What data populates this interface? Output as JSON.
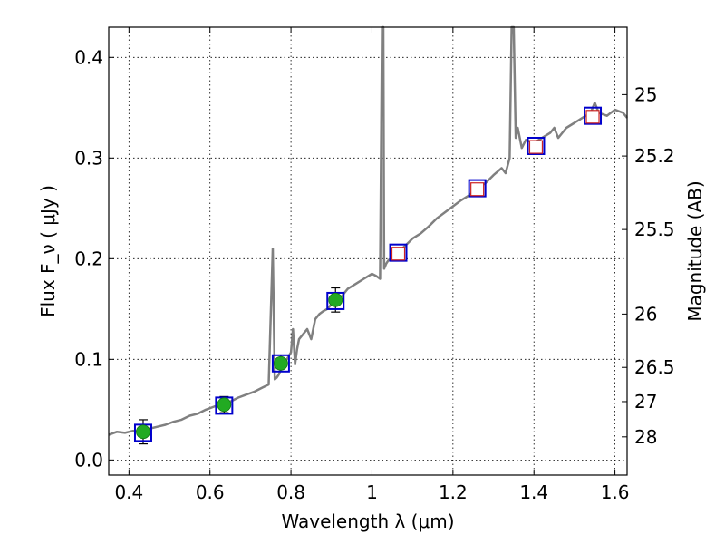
{
  "chart_data": {
    "type": "scatter",
    "xlabel": "Wavelength  λ (μm)",
    "ylabel": "Flux  F_ν  ( μJy )",
    "ylabel_right": "Magnitude (AB)",
    "xlim": [
      0.35,
      1.63
    ],
    "ylim": [
      -0.015,
      0.43
    ],
    "x_ticks": [
      0.4,
      0.6,
      0.8,
      1.0,
      1.2,
      1.4,
      1.6
    ],
    "x_tick_labels": [
      "0.4",
      "0.6",
      "0.8",
      "1",
      "1.2",
      "1.4",
      "1.6"
    ],
    "y_ticks": [
      0.0,
      0.1,
      0.2,
      0.3,
      0.4
    ],
    "y_tick_labels": [
      "0.0",
      "0.1",
      "0.2",
      "0.3",
      "0.4"
    ],
    "right_ticks": [
      {
        "label": "25",
        "flux": 0.363
      },
      {
        "label": "25.2",
        "flux": 0.302
      },
      {
        "label": "25.5",
        "flux": 0.229
      },
      {
        "label": "26",
        "flux": 0.145
      },
      {
        "label": "26.5",
        "flux": 0.092
      },
      {
        "label": "27",
        "flux": 0.058
      },
      {
        "label": "28",
        "flux": 0.023
      }
    ],
    "grid": true,
    "series": [
      {
        "role": "spectrum",
        "color": "#808080",
        "x": [
          0.35,
          0.37,
          0.39,
          0.41,
          0.43,
          0.45,
          0.47,
          0.49,
          0.51,
          0.53,
          0.55,
          0.57,
          0.59,
          0.61,
          0.63,
          0.65,
          0.67,
          0.69,
          0.71,
          0.73,
          0.745,
          0.755,
          0.76,
          0.765,
          0.77,
          0.775,
          0.78,
          0.79,
          0.8,
          0.805,
          0.81,
          0.815,
          0.82,
          0.83,
          0.84,
          0.85,
          0.86,
          0.87,
          0.88,
          0.89,
          0.9,
          0.92,
          0.94,
          0.96,
          0.98,
          1.0,
          1.01,
          1.02,
          1.025,
          1.028,
          1.03,
          1.035,
          1.04,
          1.06,
          1.08,
          1.1,
          1.12,
          1.14,
          1.16,
          1.18,
          1.2,
          1.22,
          1.24,
          1.26,
          1.28,
          1.3,
          1.32,
          1.33,
          1.34,
          1.345,
          1.35,
          1.355,
          1.36,
          1.37,
          1.38,
          1.4,
          1.42,
          1.44,
          1.45,
          1.46,
          1.48,
          1.5,
          1.52,
          1.54,
          1.55,
          1.56,
          1.58,
          1.6,
          1.62,
          1.63
        ],
        "y": [
          0.025,
          0.028,
          0.027,
          0.029,
          0.028,
          0.031,
          0.033,
          0.035,
          0.038,
          0.04,
          0.044,
          0.046,
          0.05,
          0.053,
          0.056,
          0.058,
          0.062,
          0.065,
          0.068,
          0.072,
          0.075,
          0.21,
          0.08,
          0.082,
          0.085,
          0.09,
          0.095,
          0.1,
          0.107,
          0.13,
          0.095,
          0.11,
          0.12,
          0.125,
          0.13,
          0.12,
          0.14,
          0.145,
          0.148,
          0.15,
          0.155,
          0.16,
          0.17,
          0.175,
          0.18,
          0.185,
          0.183,
          0.18,
          0.43,
          0.43,
          0.19,
          0.195,
          0.198,
          0.205,
          0.212,
          0.22,
          0.225,
          0.232,
          0.24,
          0.246,
          0.252,
          0.258,
          0.263,
          0.27,
          0.275,
          0.283,
          0.29,
          0.285,
          0.3,
          0.43,
          0.43,
          0.32,
          0.33,
          0.31,
          0.318,
          0.315,
          0.32,
          0.325,
          0.33,
          0.32,
          0.33,
          0.335,
          0.34,
          0.345,
          0.355,
          0.345,
          0.342,
          0.348,
          0.345,
          0.34
        ]
      },
      {
        "role": "model-photometry",
        "marker": "open-square",
        "color": "#0000cc",
        "x": [
          0.435,
          0.635,
          0.775,
          0.91,
          1.065,
          1.26,
          1.405,
          1.545
        ],
        "y": [
          0.027,
          0.054,
          0.096,
          0.158,
          0.206,
          0.27,
          0.312,
          0.342
        ]
      },
      {
        "role": "model-photometry-inner",
        "marker": "open-square",
        "color": "#cc2222",
        "x": [
          1.065,
          1.26,
          1.405,
          1.545
        ],
        "y": [
          0.205,
          0.269,
          0.311,
          0.341
        ]
      },
      {
        "role": "observed",
        "marker": "filled-circle",
        "color": "#22aa22",
        "x": [
          0.435,
          0.635,
          0.775,
          0.91
        ],
        "y": [
          0.028,
          0.055,
          0.096,
          0.159
        ],
        "yerr": [
          0.012,
          0.008,
          0.008,
          0.012
        ]
      }
    ]
  }
}
